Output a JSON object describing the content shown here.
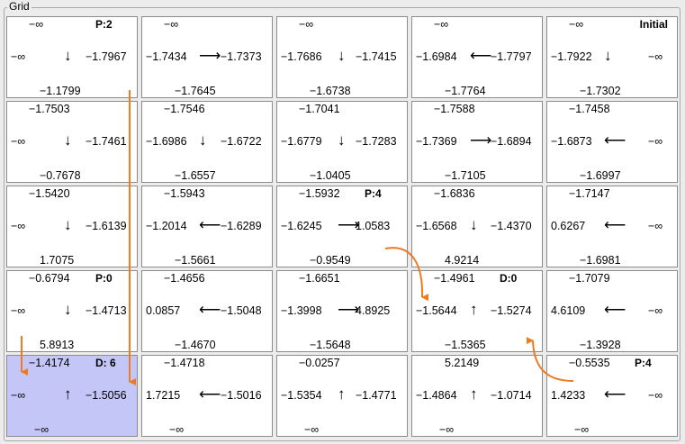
{
  "groupbox": {
    "title": "Grid"
  },
  "glyphs": {
    "up": "↑",
    "down": "↓",
    "left": "⟵",
    "right": "⟶"
  },
  "grid": {
    "rows": [
      [
        {
          "top": "−∞",
          "left": "−∞",
          "right": "−1.7967",
          "bottom": "−1.1799",
          "arrow": "down",
          "tag": "P:2"
        },
        {
          "top": "−∞",
          "left": "−1.7434",
          "right": "−1.7373",
          "bottom": "−1.7645",
          "arrow": "right",
          "tag": ""
        },
        {
          "top": "−∞",
          "left": "−1.7686",
          "right": "−1.7415",
          "bottom": "−1.6738",
          "arrow": "down",
          "tag": ""
        },
        {
          "top": "−∞",
          "left": "−1.6984",
          "right": "−1.7797",
          "bottom": "−1.7764",
          "arrow": "left",
          "tag": ""
        },
        {
          "top": "−∞",
          "left": "−1.7922",
          "right": "−∞",
          "bottom": "−1.7302",
          "arrow": "down",
          "tag": "Initial"
        }
      ],
      [
        {
          "top": "−1.7503",
          "left": "−∞",
          "right": "−1.7461",
          "bottom": "−0.7678",
          "arrow": "down",
          "tag": ""
        },
        {
          "top": "−1.7546",
          "left": "−1.6986",
          "right": "−1.6722",
          "bottom": "−1.6557",
          "arrow": "down",
          "tag": ""
        },
        {
          "top": "−1.7041",
          "left": "−1.6779",
          "right": "−1.7283",
          "bottom": "−1.0405",
          "arrow": "down",
          "tag": ""
        },
        {
          "top": "−1.7588",
          "left": "−1.7369",
          "right": "−1.6894",
          "bottom": "−1.7105",
          "arrow": "right",
          "tag": ""
        },
        {
          "top": "−1.7458",
          "left": "−1.6873",
          "right": "−∞",
          "bottom": "−1.6997",
          "arrow": "left",
          "tag": ""
        }
      ],
      [
        {
          "top": "−1.5420",
          "left": "−∞",
          "right": "−1.6139",
          "bottom": "1.7075",
          "arrow": "down",
          "tag": ""
        },
        {
          "top": "−1.5943",
          "left": "−1.2014",
          "right": "−1.6289",
          "bottom": "−1.5661",
          "arrow": "left",
          "tag": ""
        },
        {
          "top": "−1.5932",
          "left": "−1.6245",
          "right": "1.0583",
          "bottom": "−0.9549",
          "arrow": "right",
          "tag": "P:4"
        },
        {
          "top": "−1.6836",
          "left": "−1.6568",
          "right": "−1.4370",
          "bottom": "4.9214",
          "arrow": "down",
          "tag": ""
        },
        {
          "top": "−1.7147",
          "left": "0.6267",
          "right": "−∞",
          "bottom": "−1.6981",
          "arrow": "left",
          "tag": ""
        }
      ],
      [
        {
          "top": "−0.6794",
          "left": "−∞",
          "right": "−1.4713",
          "bottom": "5.8913",
          "arrow": "down",
          "tag": "P:0"
        },
        {
          "top": "−1.4656",
          "left": "0.0857",
          "right": "−1.5048",
          "bottom": "−1.4670",
          "arrow": "left",
          "tag": ""
        },
        {
          "top": "−1.6651",
          "left": "−1.3998",
          "right": "4.8925",
          "bottom": "−1.5648",
          "arrow": "right",
          "tag": ""
        },
        {
          "top": "−1.4961",
          "left": "−1.5644",
          "right": "−1.5274",
          "bottom": "−1.5365",
          "arrow": "up",
          "tag": "D:0"
        },
        {
          "top": "−1.7079",
          "left": "4.6109",
          "right": "−∞",
          "bottom": "−1.3928",
          "arrow": "left",
          "tag": ""
        }
      ],
      [
        {
          "top": "−1.4174",
          "left": "−∞",
          "right": "−1.5056",
          "bottom": "−∞",
          "arrow": "up",
          "tag": "D: 6"
        },
        {
          "top": "−1.4718",
          "left": "1.7215",
          "right": "−1.5016",
          "bottom": "−∞",
          "arrow": "left",
          "tag": ""
        },
        {
          "top": "−0.0257",
          "left": "−1.5354",
          "right": "−1.4771",
          "bottom": "−∞",
          "arrow": "up",
          "tag": ""
        },
        {
          "top": "5.2149",
          "left": "−1.4864",
          "right": "−1.0714",
          "bottom": "−∞",
          "arrow": "up",
          "tag": ""
        },
        {
          "top": "−0.5535",
          "left": "1.4233",
          "right": "−∞",
          "bottom": "−∞",
          "arrow": "left",
          "tag": "P:4"
        }
      ]
    ]
  },
  "colors": {
    "highlight": "#c3c6f6",
    "transition_arrow": "#f07a1d"
  }
}
